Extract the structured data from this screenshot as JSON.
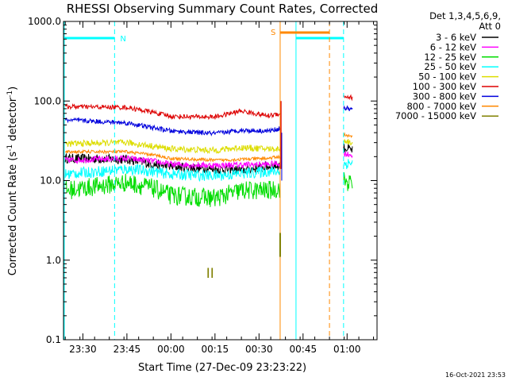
{
  "chart_data": {
    "type": "line",
    "title": "RHESSI Observing Summary Count Rates, Corrected",
    "xlabel": "Start Time (27-Dec-09 23:23:22)",
    "ylabel": "Corrected Count Rate (s⁻¹ detector⁻¹)",
    "ylabel_parts": [
      "Corrected Count Rate (s",
      "-1",
      " detector",
      "-1",
      ")"
    ],
    "y_scale": "log",
    "ylim": [
      0.1,
      1000.0
    ],
    "y_ticks": [
      {
        "value": 0.1,
        "label": "0.1"
      },
      {
        "value": 1.0,
        "label": "1.0"
      },
      {
        "value": 10.0,
        "label": "10.0"
      },
      {
        "value": 100.0,
        "label": "100.0"
      },
      {
        "value": 1000.0,
        "label": "1000.0"
      }
    ],
    "x_ticks": [
      "23:30",
      "23:45",
      "00:00",
      "00:15",
      "00:30",
      "00:45",
      "01:00"
    ],
    "legend": {
      "placement": "right",
      "header": [
        "Det 1,3,4,5,6,9,",
        "Att 0"
      ],
      "entries": [
        {
          "label": "3 - 6 keV",
          "color": "#000000"
        },
        {
          "label": "6 - 12 keV",
          "color": "#ff00ff"
        },
        {
          "label": "12 - 25 keV",
          "color": "#00dd00"
        },
        {
          "label": "25 - 50 keV",
          "color": "#00ffff"
        },
        {
          "label": "50 - 100 keV",
          "color": "#dddd00"
        },
        {
          "label": "100 - 300 keV",
          "color": "#dd0000"
        },
        {
          "label": "300 - 800 keV",
          "color": "#0000dd"
        },
        {
          "label": "800 - 7000 keV",
          "color": "#ff8800"
        },
        {
          "label": "7000 - 15000 keV",
          "color": "#808000"
        }
      ]
    },
    "series": [
      {
        "name": "3 - 6 keV",
        "color": "#000000",
        "noise": 0.06,
        "segment1": [
          [
            23.4,
            19
          ],
          [
            23.75,
            18.5
          ],
          [
            23.9,
            16
          ],
          [
            24.0,
            15
          ],
          [
            24.25,
            14
          ],
          [
            24.4,
            13.5
          ],
          [
            24.55,
            15
          ],
          [
            24.62,
            15.5
          ]
        ],
        "segment2": [
          [
            24.98,
            26
          ],
          [
            25.03,
            24
          ]
        ]
      },
      {
        "name": "6 - 12 keV",
        "color": "#ff00ff",
        "noise": 0.04,
        "segment1": [
          [
            23.4,
            18
          ],
          [
            23.75,
            19
          ],
          [
            23.9,
            17.5
          ],
          [
            24.0,
            16
          ],
          [
            24.25,
            15.5
          ],
          [
            24.55,
            16
          ],
          [
            24.62,
            16.5
          ]
        ],
        "segment2": [
          [
            24.98,
            22
          ],
          [
            25.03,
            21
          ]
        ]
      },
      {
        "name": "12 - 25 keV",
        "color": "#00dd00",
        "noise": 0.12,
        "segment1": [
          [
            23.4,
            7.5
          ],
          [
            23.75,
            9.5
          ],
          [
            23.9,
            8
          ],
          [
            24.0,
            6.5
          ],
          [
            24.25,
            6
          ],
          [
            24.4,
            7.5
          ],
          [
            24.55,
            7.5
          ],
          [
            24.62,
            8
          ]
        ],
        "segment2": [
          [
            24.98,
            10
          ],
          [
            25.03,
            9
          ]
        ]
      },
      {
        "name": "25 - 50 keV",
        "color": "#00ffff",
        "noise": 0.07,
        "segment1": [
          [
            23.4,
            12
          ],
          [
            23.75,
            14
          ],
          [
            23.9,
            13
          ],
          [
            24.0,
            12
          ],
          [
            24.25,
            11.5
          ],
          [
            24.55,
            13
          ],
          [
            24.62,
            13
          ]
        ],
        "segment2": [
          [
            24.98,
            16
          ],
          [
            25.03,
            17
          ]
        ]
      },
      {
        "name": "50 - 100 keV",
        "color": "#dddd00",
        "noise": 0.04,
        "segment1": [
          [
            23.4,
            29
          ],
          [
            23.75,
            30
          ],
          [
            23.9,
            27
          ],
          [
            24.0,
            25
          ],
          [
            24.25,
            24
          ],
          [
            24.4,
            26
          ],
          [
            24.55,
            25
          ],
          [
            24.62,
            25
          ]
        ],
        "segment2": [
          [
            24.98,
            32
          ],
          [
            25.03,
            30
          ]
        ]
      },
      {
        "name": "100 - 300 keV",
        "color": "#dd0000",
        "noise": 0.03,
        "segment1": [
          [
            23.4,
            85
          ],
          [
            23.75,
            83
          ],
          [
            23.9,
            72
          ],
          [
            24.0,
            64
          ],
          [
            24.25,
            63
          ],
          [
            24.4,
            75
          ],
          [
            24.55,
            65
          ],
          [
            24.62,
            70
          ]
        ],
        "segment2": [
          [
            24.98,
            115
          ],
          [
            25.03,
            110
          ]
        ]
      },
      {
        "name": "300 - 800 keV",
        "color": "#0000dd",
        "noise": 0.03,
        "segment1": [
          [
            23.4,
            58
          ],
          [
            23.75,
            53
          ],
          [
            23.9,
            46
          ],
          [
            24.0,
            42
          ],
          [
            24.25,
            39
          ],
          [
            24.4,
            43
          ],
          [
            24.55,
            42
          ],
          [
            24.62,
            45
          ]
        ],
        "segment2": [
          [
            24.98,
            82
          ],
          [
            25.03,
            78
          ]
        ]
      },
      {
        "name": "800 - 7000 keV",
        "color": "#ff8800",
        "noise": 0.02,
        "segment1": [
          [
            23.4,
            23
          ],
          [
            23.75,
            23
          ],
          [
            23.9,
            21
          ],
          [
            24.0,
            19
          ],
          [
            24.25,
            18
          ],
          [
            24.55,
            19
          ],
          [
            24.62,
            20
          ]
        ],
        "segment2": [
          [
            24.98,
            38
          ],
          [
            25.03,
            35
          ]
        ]
      },
      {
        "name": "7000 - 15000 keV",
        "color": "#808000",
        "noise": 0.0,
        "segment1": [],
        "segment2": []
      }
    ],
    "annotations": {
      "night_label": "N",
      "saa_label": "S",
      "flag_label": "II",
      "night_color": "#00ffff",
      "saa_color": "#ff8800",
      "flag_color": "#808000"
    },
    "timestamp": "16-Oct-2021 23:53"
  }
}
